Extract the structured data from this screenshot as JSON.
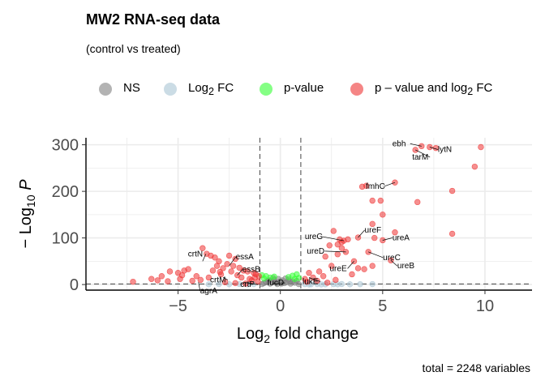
{
  "title": "MW2 RNA-seq data",
  "subtitle": "(control vs treated)",
  "caption": "total = 2248 variables",
  "legend": [
    {
      "label_main": "NS",
      "label_sub": "",
      "label_rest": "",
      "color": "#808080"
    },
    {
      "label_main": "Log",
      "label_sub": "2",
      "label_rest": " FC",
      "color": "#a9c4d4"
    },
    {
      "label_main": "p-value",
      "label_sub": "",
      "label_rest": "",
      "color": "#33ff33"
    },
    {
      "label_main": "p – value and log",
      "label_sub": "2",
      "label_rest": " FC",
      "color": "#ee3333"
    }
  ],
  "chart_data": {
    "type": "scatter",
    "title": "MW2 RNA-seq data",
    "subtitle": "(control vs treated)",
    "xlabel": "Log2 fold change",
    "ylabel": "−Log10 P",
    "xlim": [
      -9.5,
      12.3
    ],
    "ylim": [
      -12,
      315
    ],
    "xticks": [
      -5,
      0,
      5,
      10
    ],
    "yticks": [
      0,
      100,
      200,
      300
    ],
    "fc_cutoff": 1,
    "p_cutoff_neglog10": 1.3,
    "grid": true,
    "legend_position": "top",
    "series": [
      {
        "name": "NS",
        "color": "#808080",
        "points": [
          [
            -0.9,
            1
          ],
          [
            -0.8,
            3
          ],
          [
            -0.7,
            5
          ],
          [
            -0.6,
            8
          ],
          [
            -0.5,
            2
          ],
          [
            -0.4,
            6
          ],
          [
            -0.3,
            10
          ],
          [
            -0.2,
            4
          ],
          [
            -0.1,
            12
          ],
          [
            0,
            7
          ],
          [
            0.1,
            9
          ],
          [
            0.2,
            3
          ],
          [
            0.3,
            5
          ],
          [
            0.4,
            11
          ],
          [
            0.5,
            2
          ],
          [
            0.6,
            6
          ],
          [
            0.7,
            4
          ],
          [
            0.8,
            8
          ],
          [
            0.9,
            1
          ],
          [
            -0.35,
            14
          ],
          [
            0.25,
            13
          ],
          [
            -0.15,
            1
          ],
          [
            0.05,
            2
          ],
          [
            0.45,
            7
          ],
          [
            -0.55,
            9
          ]
        ]
      },
      {
        "name": "Log2 FC",
        "color": "#a9c4d4",
        "points": [
          [
            -3.5,
            0.5
          ],
          [
            -3.0,
            1
          ],
          [
            -2.5,
            0.8
          ],
          [
            -2.0,
            1.1
          ],
          [
            -1.6,
            0.6
          ],
          [
            -1.3,
            1.0
          ],
          [
            1.2,
            0.9
          ],
          [
            1.5,
            0.7
          ],
          [
            1.8,
            1.0
          ],
          [
            2.2,
            0.6
          ],
          [
            2.6,
            0.9
          ],
          [
            3.0,
            1.1
          ],
          [
            3.4,
            0.5
          ],
          [
            3.9,
            0.8
          ],
          [
            4.5,
            1.0
          ],
          [
            1.4,
            0.4
          ],
          [
            2.0,
            0.3
          ],
          [
            2.8,
            0.5
          ]
        ]
      },
      {
        "name": "p-value",
        "color": "#33ff33",
        "points": [
          [
            -0.9,
            20
          ],
          [
            -0.7,
            18
          ],
          [
            -0.5,
            15
          ],
          [
            -0.3,
            17
          ],
          [
            0.4,
            16
          ],
          [
            0.6,
            19
          ],
          [
            0.8,
            22
          ],
          [
            0.9,
            14
          ],
          [
            -0.8,
            13
          ],
          [
            0.7,
            12
          ]
        ]
      },
      {
        "name": "p – value and log2 FC",
        "color": "#ee3333",
        "points": [
          [
            9.8,
            295
          ],
          [
            7.6,
            293
          ],
          [
            7.3,
            295
          ],
          [
            6.9,
            297
          ],
          [
            6.6,
            289
          ],
          [
            9.5,
            253
          ],
          [
            5.6,
            219
          ],
          [
            8.4,
            201
          ],
          [
            4.2,
            212
          ],
          [
            4.0,
            210
          ],
          [
            4.5,
            180
          ],
          [
            4.9,
            180
          ],
          [
            6.7,
            177
          ],
          [
            8.4,
            109
          ],
          [
            5.0,
            150
          ],
          [
            4.5,
            130
          ],
          [
            2.6,
            115
          ],
          [
            5.6,
            112
          ],
          [
            3.8,
            101
          ],
          [
            4.6,
            100
          ],
          [
            2.9,
            97
          ],
          [
            3.3,
            97
          ],
          [
            3.1,
            94
          ],
          [
            5.0,
            95
          ],
          [
            3.0,
            91
          ],
          [
            2.8,
            86
          ],
          [
            2.4,
            84
          ],
          [
            3.0,
            78
          ],
          [
            4.3,
            70
          ],
          [
            3.2,
            70
          ],
          [
            5.4,
            52
          ],
          [
            3.6,
            50
          ],
          [
            2.8,
            65
          ],
          [
            2.2,
            60
          ],
          [
            3.8,
            35
          ],
          [
            4.1,
            33
          ],
          [
            4.5,
            40
          ],
          [
            2.5,
            40
          ],
          [
            1.9,
            28
          ],
          [
            1.4,
            25
          ],
          [
            1.6,
            15
          ],
          [
            1.2,
            12
          ],
          [
            2.1,
            18
          ],
          [
            2.7,
            10
          ],
          [
            3.5,
            22
          ],
          [
            1.3,
            6
          ],
          [
            1.8,
            8
          ],
          [
            2.3,
            4
          ],
          [
            -7.2,
            6
          ],
          [
            -6.3,
            12
          ],
          [
            -5.5,
            7
          ],
          [
            -4.8,
            20
          ],
          [
            -4.7,
            30
          ],
          [
            -4.5,
            33
          ],
          [
            -5.4,
            28
          ],
          [
            -5.0,
            25
          ],
          [
            -4.1,
            18
          ],
          [
            -3.8,
            78
          ],
          [
            -3.6,
            66
          ],
          [
            -3.4,
            62
          ],
          [
            -3.2,
            58
          ],
          [
            -3.0,
            50
          ],
          [
            -2.5,
            62
          ],
          [
            -2.2,
            55
          ],
          [
            -2.6,
            44
          ],
          [
            -2.3,
            40
          ],
          [
            -2.0,
            36
          ],
          [
            -1.8,
            30
          ],
          [
            -1.6,
            28
          ],
          [
            -1.3,
            25
          ],
          [
            -1.2,
            22
          ],
          [
            -3.1,
            40
          ],
          [
            -2.8,
            35
          ],
          [
            -2.4,
            28
          ],
          [
            -2.1,
            20
          ],
          [
            -1.9,
            15
          ],
          [
            -1.5,
            12
          ],
          [
            -1.4,
            9
          ],
          [
            -1.1,
            6
          ],
          [
            -3.9,
            10
          ],
          [
            -4.3,
            8
          ],
          [
            -3.5,
            15
          ],
          [
            -2.9,
            22
          ],
          [
            -2.7,
            5
          ],
          [
            -2.2,
            3
          ],
          [
            -1.7,
            2
          ],
          [
            -6.0,
            9
          ],
          [
            -5.8,
            18
          ],
          [
            -4.9,
            12
          ],
          [
            -3.3,
            30
          ],
          [
            -2.95,
            27
          ],
          [
            -1.25,
            15
          ],
          [
            -1.05,
            18
          ]
        ]
      }
    ],
    "annotations": [
      {
        "label": "ebh",
        "point": [
          6.9,
          297
        ]
      },
      {
        "label": "lytN",
        "point": [
          7.3,
          295
        ]
      },
      {
        "label": "tarM",
        "point": [
          6.6,
          289
        ]
      },
      {
        "label": "fmhC",
        "point": [
          5.6,
          219
        ]
      },
      {
        "label": "ureG",
        "point": [
          3.1,
          94
        ]
      },
      {
        "label": "ureF",
        "point": [
          3.8,
          101
        ]
      },
      {
        "label": "ureA",
        "point": [
          5.0,
          95
        ]
      },
      {
        "label": "ureD",
        "point": [
          3.2,
          70
        ]
      },
      {
        "label": "ureC",
        "point": [
          4.3,
          70
        ]
      },
      {
        "label": "ureE",
        "point": [
          3.6,
          50
        ]
      },
      {
        "label": "ureB",
        "point": [
          5.4,
          52
        ]
      },
      {
        "label": "crtN",
        "point": [
          -3.8,
          50
        ]
      },
      {
        "label": "essA",
        "point": [
          -2.5,
          40
        ]
      },
      {
        "label": "essB",
        "point": [
          -2.1,
          20
        ]
      },
      {
        "label": "crtM",
        "point": [
          -2.8,
          15
        ]
      },
      {
        "label": "agrA",
        "point": [
          -4.0,
          5
        ]
      },
      {
        "label": "crtP",
        "point": [
          -1.8,
          5
        ]
      },
      {
        "label": "fucD",
        "point": [
          -0.4,
          2
        ]
      },
      {
        "label": "lukE",
        "point": [
          1.4,
          15
        ]
      }
    ]
  }
}
